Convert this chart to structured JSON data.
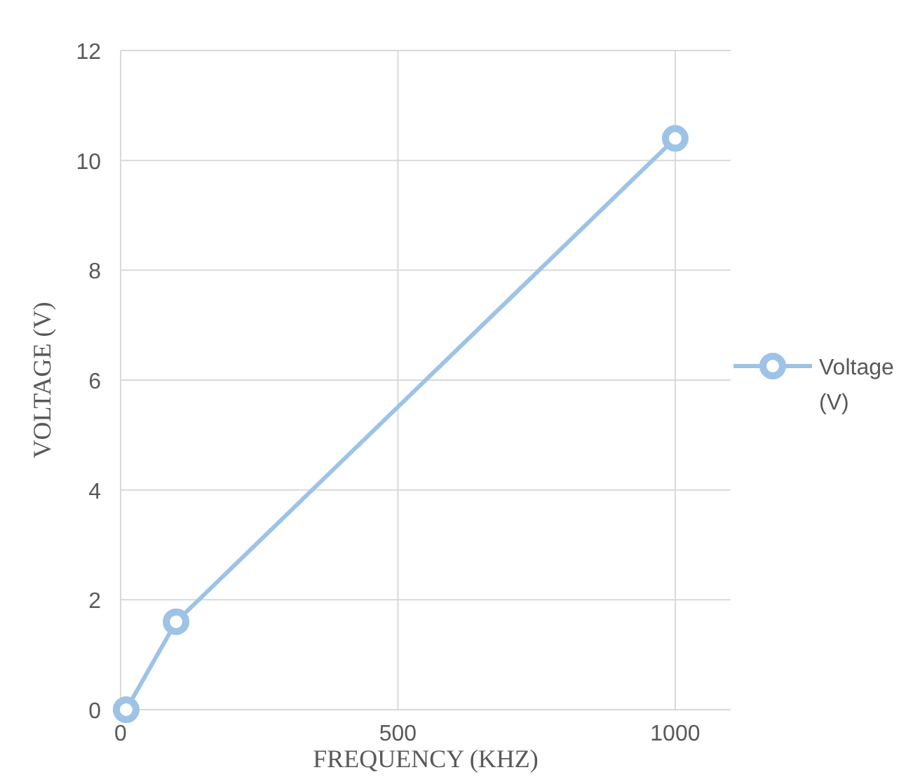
{
  "chart_data": {
    "type": "line",
    "xlabel": "FREQUENCY (KHZ)",
    "ylabel": "VOLTAGE (V)",
    "x": [
      10,
      100,
      1000
    ],
    "series": [
      {
        "name": "Voltage (V)",
        "color": "#9dc3e6",
        "values": [
          0,
          1.6,
          10.4
        ]
      }
    ],
    "xlim": [
      0,
      1100
    ],
    "xticks": [
      0,
      500,
      1000
    ],
    "ylim": [
      0,
      12
    ],
    "yticks": [
      0,
      2,
      4,
      6,
      8,
      10,
      12
    ],
    "grid": true,
    "legend": "right",
    "marker": "circle",
    "line_style": "solid"
  }
}
